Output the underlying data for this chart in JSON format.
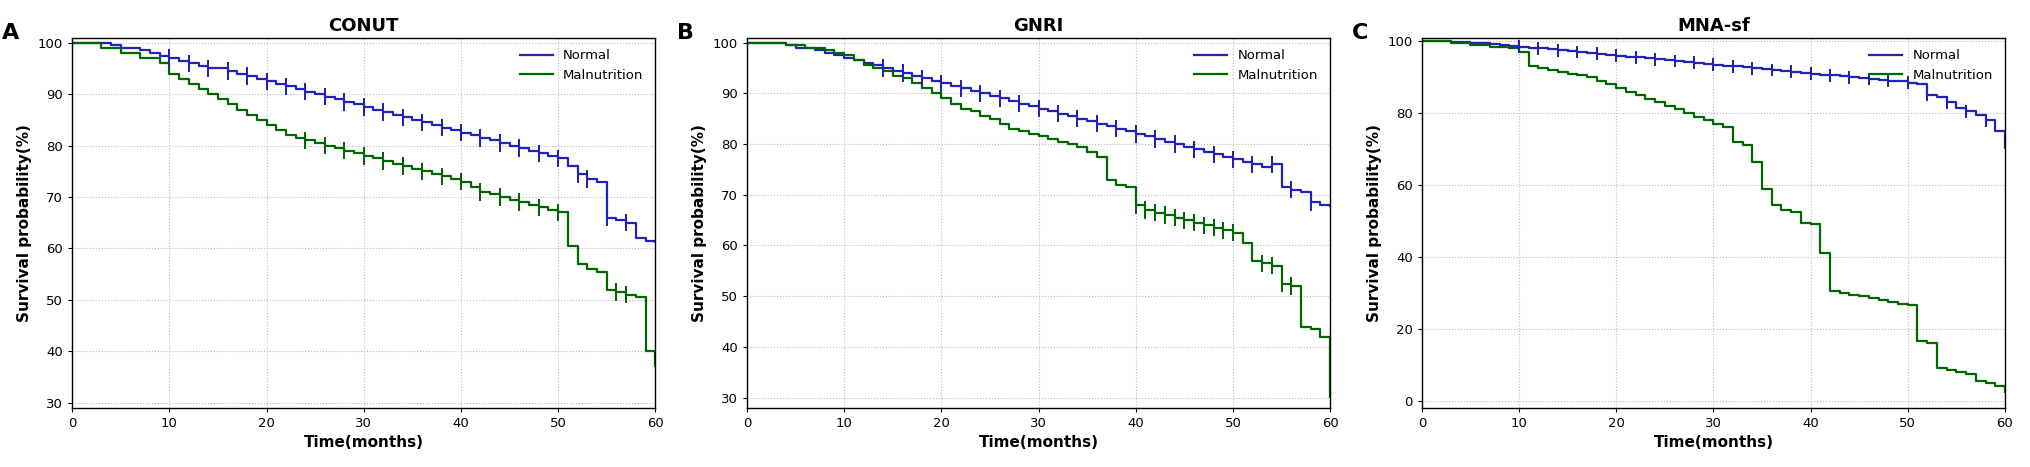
{
  "panels": [
    {
      "label": "A",
      "title": "CONUT",
      "ylim": [
        29,
        101
      ],
      "yticks": [
        30,
        40,
        50,
        60,
        70,
        80,
        90,
        100
      ],
      "normal_steps": [
        [
          0,
          100
        ],
        [
          4,
          99.5
        ],
        [
          5,
          99.0
        ],
        [
          7,
          98.5
        ],
        [
          8,
          98.0
        ],
        [
          9,
          97.5
        ],
        [
          10,
          97.0
        ],
        [
          11,
          96.5
        ],
        [
          12,
          96.0
        ],
        [
          13,
          95.5
        ],
        [
          14,
          95.0
        ],
        [
          16,
          94.5
        ],
        [
          17,
          94.0
        ],
        [
          18,
          93.5
        ],
        [
          19,
          93.0
        ],
        [
          20,
          92.5
        ],
        [
          21,
          92.0
        ],
        [
          22,
          91.5
        ],
        [
          23,
          91.0
        ],
        [
          24,
          90.5
        ],
        [
          25,
          90.0
        ],
        [
          26,
          89.5
        ],
        [
          27,
          89.0
        ],
        [
          28,
          88.5
        ],
        [
          29,
          88.0
        ],
        [
          30,
          87.5
        ],
        [
          31,
          87.0
        ],
        [
          32,
          86.5
        ],
        [
          33,
          86.0
        ],
        [
          34,
          85.5
        ],
        [
          35,
          85.0
        ],
        [
          36,
          84.5
        ],
        [
          37,
          84.0
        ],
        [
          38,
          83.5
        ],
        [
          39,
          83.0
        ],
        [
          40,
          82.5
        ],
        [
          41,
          82.0
        ],
        [
          42,
          81.5
        ],
        [
          43,
          81.0
        ],
        [
          44,
          80.5
        ],
        [
          45,
          80.0
        ],
        [
          46,
          79.5
        ],
        [
          47,
          79.0
        ],
        [
          48,
          78.5
        ],
        [
          49,
          78.0
        ],
        [
          50,
          77.5
        ],
        [
          51,
          76.0
        ],
        [
          52,
          74.5
        ],
        [
          53,
          73.5
        ],
        [
          54,
          73.0
        ],
        [
          55,
          66.0
        ],
        [
          56,
          65.5
        ],
        [
          57,
          65.0
        ],
        [
          58,
          62.0
        ],
        [
          59,
          61.5
        ],
        [
          60,
          61.0
        ]
      ],
      "normal_censor": [
        10,
        12,
        14,
        16,
        18,
        20,
        22,
        24,
        26,
        28,
        30,
        32,
        34,
        36,
        38,
        40,
        42,
        44,
        46,
        48,
        50,
        52,
        53,
        55,
        57
      ],
      "maln_steps": [
        [
          0,
          100
        ],
        [
          3,
          99.0
        ],
        [
          5,
          98.0
        ],
        [
          7,
          97.0
        ],
        [
          9,
          96.0
        ],
        [
          10,
          94.0
        ],
        [
          11,
          93.0
        ],
        [
          12,
          92.0
        ],
        [
          13,
          91.0
        ],
        [
          14,
          90.0
        ],
        [
          15,
          89.0
        ],
        [
          16,
          88.0
        ],
        [
          17,
          87.0
        ],
        [
          18,
          86.0
        ],
        [
          19,
          85.0
        ],
        [
          20,
          84.0
        ],
        [
          21,
          83.0
        ],
        [
          22,
          82.0
        ],
        [
          23,
          81.5
        ],
        [
          24,
          81.0
        ],
        [
          25,
          80.5
        ],
        [
          26,
          80.0
        ],
        [
          27,
          79.5
        ],
        [
          28,
          79.0
        ],
        [
          29,
          78.5
        ],
        [
          30,
          78.0
        ],
        [
          31,
          77.5
        ],
        [
          32,
          77.0
        ],
        [
          33,
          76.5
        ],
        [
          34,
          76.0
        ],
        [
          35,
          75.5
        ],
        [
          36,
          75.0
        ],
        [
          37,
          74.5
        ],
        [
          38,
          74.0
        ],
        [
          39,
          73.5
        ],
        [
          40,
          73.0
        ],
        [
          41,
          72.0
        ],
        [
          42,
          71.0
        ],
        [
          43,
          70.5
        ],
        [
          44,
          70.0
        ],
        [
          45,
          69.5
        ],
        [
          46,
          69.0
        ],
        [
          47,
          68.5
        ],
        [
          48,
          68.0
        ],
        [
          49,
          67.5
        ],
        [
          50,
          67.0
        ],
        [
          51,
          60.5
        ],
        [
          52,
          57.0
        ],
        [
          53,
          56.0
        ],
        [
          54,
          55.5
        ],
        [
          55,
          52.0
        ],
        [
          56,
          51.5
        ],
        [
          57,
          51.0
        ],
        [
          58,
          50.5
        ],
        [
          59,
          40.0
        ],
        [
          60,
          37.0
        ]
      ],
      "maln_censor": [
        24,
        26,
        28,
        30,
        32,
        34,
        36,
        38,
        40,
        42,
        44,
        46,
        48,
        50,
        56,
        57
      ]
    },
    {
      "label": "B",
      "title": "GNRI",
      "ylim": [
        28,
        101
      ],
      "yticks": [
        30,
        40,
        50,
        60,
        70,
        80,
        90,
        100
      ],
      "normal_steps": [
        [
          0,
          100
        ],
        [
          4,
          99.5
        ],
        [
          5,
          99.0
        ],
        [
          7,
          98.5
        ],
        [
          8,
          98.0
        ],
        [
          9,
          97.5
        ],
        [
          10,
          97.0
        ],
        [
          11,
          96.5
        ],
        [
          12,
          96.0
        ],
        [
          13,
          95.5
        ],
        [
          14,
          95.0
        ],
        [
          15,
          94.5
        ],
        [
          16,
          94.0
        ],
        [
          17,
          93.5
        ],
        [
          18,
          93.0
        ],
        [
          19,
          92.5
        ],
        [
          20,
          92.0
        ],
        [
          21,
          91.5
        ],
        [
          22,
          91.0
        ],
        [
          23,
          90.5
        ],
        [
          24,
          90.0
        ],
        [
          25,
          89.5
        ],
        [
          26,
          89.0
        ],
        [
          27,
          88.5
        ],
        [
          28,
          88.0
        ],
        [
          29,
          87.5
        ],
        [
          30,
          87.0
        ],
        [
          31,
          86.5
        ],
        [
          32,
          86.0
        ],
        [
          33,
          85.5
        ],
        [
          34,
          85.0
        ],
        [
          35,
          84.5
        ],
        [
          36,
          84.0
        ],
        [
          37,
          83.5
        ],
        [
          38,
          83.0
        ],
        [
          39,
          82.5
        ],
        [
          40,
          82.0
        ],
        [
          41,
          81.5
        ],
        [
          42,
          81.0
        ],
        [
          43,
          80.5
        ],
        [
          44,
          80.0
        ],
        [
          45,
          79.5
        ],
        [
          46,
          79.0
        ],
        [
          47,
          78.5
        ],
        [
          48,
          78.0
        ],
        [
          49,
          77.5
        ],
        [
          50,
          77.0
        ],
        [
          51,
          76.5
        ],
        [
          52,
          76.0
        ],
        [
          53,
          75.5
        ],
        [
          54,
          76.0
        ],
        [
          55,
          71.5
        ],
        [
          56,
          71.0
        ],
        [
          57,
          70.5
        ],
        [
          58,
          68.5
        ],
        [
          59,
          68.0
        ],
        [
          60,
          67.5
        ]
      ],
      "normal_censor": [
        14,
        16,
        18,
        20,
        22,
        24,
        26,
        28,
        30,
        32,
        34,
        36,
        38,
        40,
        42,
        44,
        46,
        48,
        50,
        52,
        54,
        56,
        58
      ],
      "maln_steps": [
        [
          0,
          100
        ],
        [
          4,
          99.5
        ],
        [
          6,
          99.0
        ],
        [
          8,
          98.5
        ],
        [
          9,
          98.0
        ],
        [
          10,
          97.5
        ],
        [
          11,
          96.5
        ],
        [
          12,
          95.5
        ],
        [
          13,
          95.0
        ],
        [
          14,
          94.5
        ],
        [
          15,
          93.5
        ],
        [
          16,
          93.0
        ],
        [
          17,
          92.0
        ],
        [
          18,
          91.0
        ],
        [
          19,
          90.0
        ],
        [
          20,
          89.0
        ],
        [
          21,
          88.0
        ],
        [
          22,
          87.0
        ],
        [
          23,
          86.5
        ],
        [
          24,
          85.5
        ],
        [
          25,
          85.0
        ],
        [
          26,
          84.0
        ],
        [
          27,
          83.0
        ],
        [
          28,
          82.5
        ],
        [
          29,
          82.0
        ],
        [
          30,
          81.5
        ],
        [
          31,
          81.0
        ],
        [
          32,
          80.5
        ],
        [
          33,
          80.0
        ],
        [
          34,
          79.5
        ],
        [
          35,
          78.5
        ],
        [
          36,
          77.5
        ],
        [
          37,
          73.0
        ],
        [
          38,
          72.0
        ],
        [
          39,
          71.5
        ],
        [
          40,
          68.0
        ],
        [
          41,
          67.0
        ],
        [
          42,
          66.5
        ],
        [
          43,
          66.0
        ],
        [
          44,
          65.5
        ],
        [
          45,
          65.0
        ],
        [
          46,
          64.5
        ],
        [
          47,
          64.0
        ],
        [
          48,
          63.5
        ],
        [
          49,
          63.0
        ],
        [
          50,
          62.5
        ],
        [
          51,
          60.5
        ],
        [
          52,
          57.0
        ],
        [
          53,
          56.5
        ],
        [
          54,
          56.0
        ],
        [
          55,
          52.5
        ],
        [
          56,
          52.0
        ],
        [
          57,
          44.0
        ],
        [
          58,
          43.5
        ],
        [
          59,
          42.0
        ],
        [
          60,
          30.0
        ]
      ],
      "maln_censor": [
        40,
        41,
        42,
        43,
        44,
        45,
        46,
        47,
        48,
        49,
        50,
        53,
        54,
        55,
        56
      ]
    },
    {
      "label": "C",
      "title": "MNA-sf",
      "ylim": [
        -2,
        101
      ],
      "yticks": [
        0,
        20,
        40,
        60,
        80,
        100
      ],
      "normal_steps": [
        [
          0,
          100
        ],
        [
          3,
          99.8
        ],
        [
          5,
          99.5
        ],
        [
          7,
          99.2
        ],
        [
          8,
          99.0
        ],
        [
          9,
          98.8
        ],
        [
          10,
          98.5
        ],
        [
          11,
          98.2
        ],
        [
          12,
          98.0
        ],
        [
          13,
          97.7
        ],
        [
          14,
          97.5
        ],
        [
          15,
          97.2
        ],
        [
          16,
          97.0
        ],
        [
          17,
          96.7
        ],
        [
          18,
          96.5
        ],
        [
          19,
          96.2
        ],
        [
          20,
          96.0
        ],
        [
          21,
          95.7
        ],
        [
          22,
          95.5
        ],
        [
          23,
          95.2
        ],
        [
          24,
          95.0
        ],
        [
          25,
          94.7
        ],
        [
          26,
          94.5
        ],
        [
          27,
          94.2
        ],
        [
          28,
          94.0
        ],
        [
          29,
          93.7
        ],
        [
          30,
          93.5
        ],
        [
          31,
          93.2
        ],
        [
          32,
          93.0
        ],
        [
          33,
          92.7
        ],
        [
          34,
          92.5
        ],
        [
          35,
          92.2
        ],
        [
          36,
          92.0
        ],
        [
          37,
          91.7
        ],
        [
          38,
          91.5
        ],
        [
          39,
          91.2
        ],
        [
          40,
          91.0
        ],
        [
          41,
          90.7
        ],
        [
          42,
          90.5
        ],
        [
          43,
          90.2
        ],
        [
          44,
          90.0
        ],
        [
          45,
          89.8
        ],
        [
          46,
          89.5
        ],
        [
          47,
          89.2
        ],
        [
          48,
          89.0
        ],
        [
          49,
          88.8
        ],
        [
          50,
          88.5
        ],
        [
          51,
          88.2
        ],
        [
          52,
          85.0
        ],
        [
          53,
          84.5
        ],
        [
          54,
          83.0
        ],
        [
          55,
          81.5
        ],
        [
          56,
          80.5
        ],
        [
          57,
          79.5
        ],
        [
          58,
          78.0
        ],
        [
          59,
          75.0
        ],
        [
          60,
          70.0
        ]
      ],
      "normal_censor": [
        10,
        12,
        14,
        16,
        18,
        20,
        22,
        24,
        26,
        28,
        30,
        32,
        34,
        36,
        38,
        40,
        42,
        44,
        46,
        48,
        50,
        52,
        54,
        56,
        58
      ],
      "maln_steps": [
        [
          0,
          100
        ],
        [
          3,
          99.5
        ],
        [
          5,
          99.0
        ],
        [
          7,
          98.5
        ],
        [
          9,
          98.0
        ],
        [
          10,
          97.0
        ],
        [
          11,
          93.0
        ],
        [
          12,
          92.5
        ],
        [
          13,
          92.0
        ],
        [
          14,
          91.5
        ],
        [
          15,
          91.0
        ],
        [
          16,
          90.5
        ],
        [
          17,
          90.0
        ],
        [
          18,
          89.0
        ],
        [
          19,
          88.0
        ],
        [
          20,
          87.0
        ],
        [
          21,
          86.0
        ],
        [
          22,
          85.0
        ],
        [
          23,
          84.0
        ],
        [
          24,
          83.0
        ],
        [
          25,
          82.0
        ],
        [
          26,
          81.0
        ],
        [
          27,
          80.0
        ],
        [
          28,
          79.0
        ],
        [
          29,
          78.0
        ],
        [
          30,
          77.0
        ],
        [
          31,
          76.0
        ],
        [
          32,
          72.0
        ],
        [
          33,
          71.0
        ],
        [
          34,
          66.5
        ],
        [
          35,
          59.0
        ],
        [
          36,
          54.5
        ],
        [
          37,
          53.0
        ],
        [
          38,
          52.5
        ],
        [
          39,
          49.5
        ],
        [
          40,
          49.0
        ],
        [
          41,
          41.0
        ],
        [
          42,
          30.5
        ],
        [
          43,
          30.0
        ],
        [
          44,
          29.5
        ],
        [
          45,
          29.0
        ],
        [
          46,
          28.5
        ],
        [
          47,
          28.0
        ],
        [
          48,
          27.5
        ],
        [
          49,
          27.0
        ],
        [
          50,
          26.5
        ],
        [
          51,
          16.5
        ],
        [
          52,
          16.0
        ],
        [
          53,
          9.0
        ],
        [
          54,
          8.5
        ],
        [
          55,
          8.0
        ],
        [
          56,
          7.5
        ],
        [
          57,
          5.5
        ],
        [
          58,
          5.0
        ],
        [
          59,
          4.0
        ],
        [
          60,
          2.0
        ]
      ],
      "maln_censor": []
    }
  ],
  "normal_color": "#2222bb",
  "malnutrition_color": "#006600",
  "linewidth": 1.6,
  "censor_tick_height": 1.5,
  "xlabel": "Time(months)",
  "ylabel": "Survival probability(%)",
  "xticks": [
    0,
    10,
    20,
    30,
    40,
    50,
    60
  ],
  "background_color": "#ffffff",
  "tick_label_fontsize": 9.5,
  "axis_label_fontsize": 11,
  "title_fontsize": 13,
  "legend_fontsize": 9.5,
  "panel_label_fontsize": 16
}
